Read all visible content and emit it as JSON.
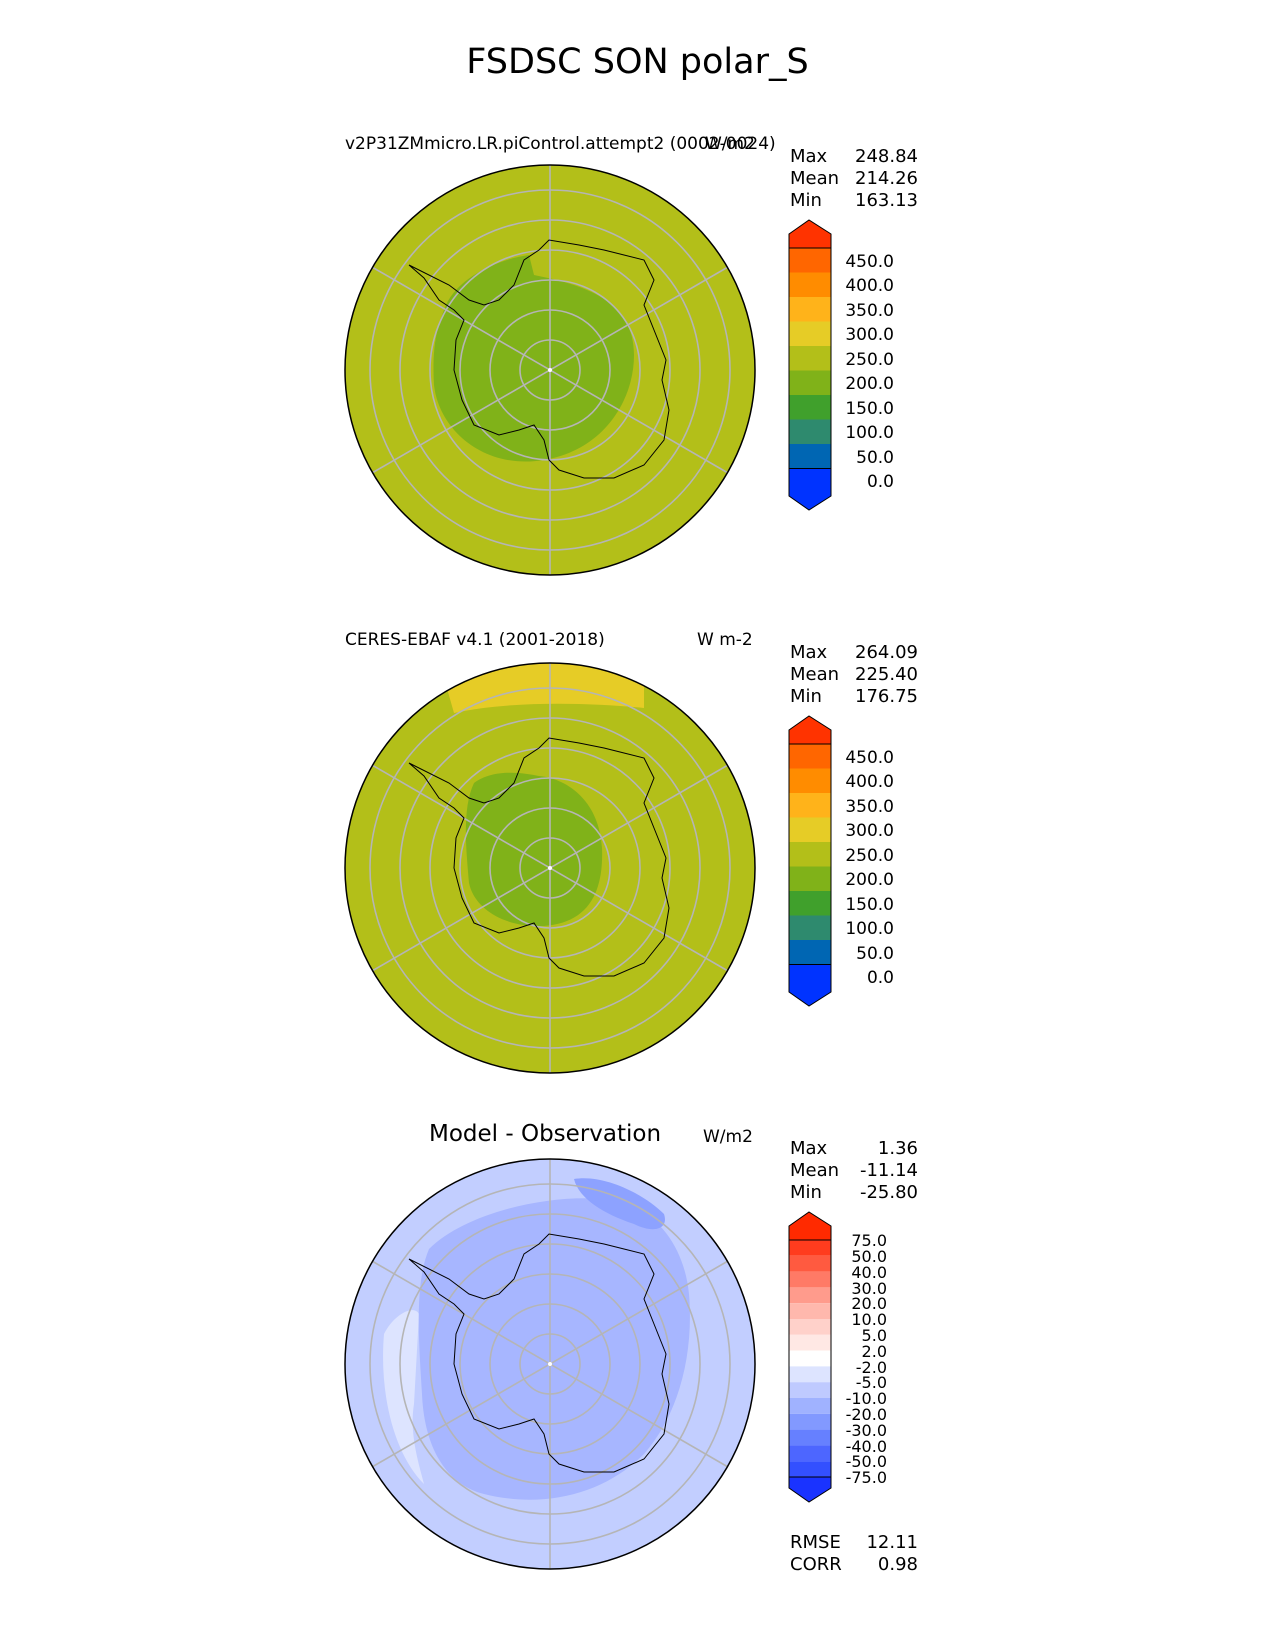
{
  "figure": {
    "title": "FSDSC SON polar_S"
  },
  "panels": [
    {
      "title_left": "v2P31ZMmicro.LR.piControl.attempt2 (0002-0024)",
      "units": "W/m2",
      "stats": [
        {
          "label": "Max",
          "value": "248.84"
        },
        {
          "label": "Mean",
          "value": "214.26"
        },
        {
          "label": "Min",
          "value": "163.13"
        }
      ],
      "colorbar": {
        "ticks": [
          "450.0",
          "400.0",
          "350.0",
          "300.0",
          "250.0",
          "200.0",
          "150.0",
          "100.0",
          "50.0",
          "0.0"
        ],
        "colors": [
          "#ff3300",
          "#ff6600",
          "#ff8c00",
          "#ffb31a",
          "#e6cc26",
          "#b3bf19",
          "#80b219",
          "#40a02c",
          "#2e8a6e",
          "#0066b3",
          "#0033ff"
        ]
      },
      "map": {
        "ocean_color": "#b3bf19",
        "inner_color": "#80b219"
      }
    },
    {
      "title_left": "CERES-EBAF v4.1 (2001-2018)",
      "units": "W m-2",
      "stats": [
        {
          "label": "Max",
          "value": "264.09"
        },
        {
          "label": "Mean",
          "value": "225.40"
        },
        {
          "label": "Min",
          "value": "176.75"
        }
      ],
      "colorbar": {
        "ticks": [
          "450.0",
          "400.0",
          "350.0",
          "300.0",
          "250.0",
          "200.0",
          "150.0",
          "100.0",
          "50.0",
          "0.0"
        ],
        "colors": [
          "#ff3300",
          "#ff6600",
          "#ff8c00",
          "#ffb31a",
          "#e6cc26",
          "#b3bf19",
          "#80b219",
          "#40a02c",
          "#2e8a6e",
          "#0066b3",
          "#0033ff"
        ]
      },
      "map": {
        "ocean_color": "#b3bf19",
        "inner_color": "#80b219",
        "band_color": "#e6cc26"
      }
    },
    {
      "title_center": "Model - Observation",
      "units": "W/m2",
      "stats": [
        {
          "label": "Max",
          "value": "1.36"
        },
        {
          "label": "Mean",
          "value": "-11.14"
        },
        {
          "label": "Min",
          "value": "-25.80"
        }
      ],
      "colorbar": {
        "ticks": [
          "75.0",
          "50.0",
          "40.0",
          "30.0",
          "20.0",
          "10.0",
          "5.0",
          "2.0",
          "-2.0",
          "-5.0",
          "-10.0",
          "-20.0",
          "-30.0",
          "-40.0",
          "-50.0",
          "-75.0"
        ],
        "colors": [
          "#ff2a00",
          "#ff3c1e",
          "#ff5a40",
          "#ff7a66",
          "#ff9b8c",
          "#ffb8ad",
          "#ffd1ca",
          "#ffe8e4",
          "#ffffff",
          "#dde4ff",
          "#bfcaff",
          "#a0b2ff",
          "#8299ff",
          "#6680ff",
          "#4d66ff",
          "#3350ff",
          "#1a33ff"
        ]
      },
      "map": {
        "ocean_color": "#c2ceff",
        "inner_color": "#a7b6ff",
        "edge_color": "#dde4ff",
        "dark_color": "#8da2ff"
      },
      "extra_stats": [
        {
          "label": "RMSE",
          "value": "12.11"
        },
        {
          "label": "CORR",
          "value": "0.98"
        }
      ]
    }
  ]
}
